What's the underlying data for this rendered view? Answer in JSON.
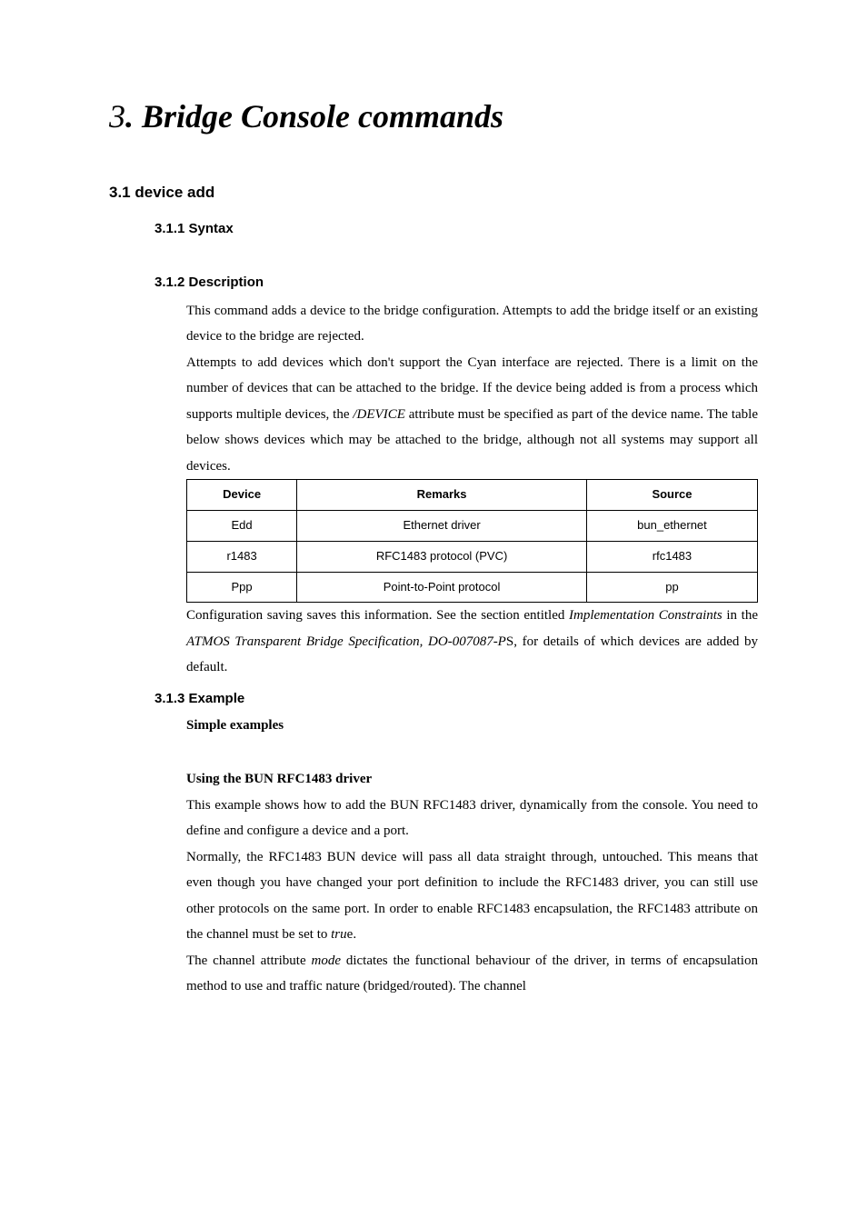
{
  "chapter": {
    "number": "3",
    "title": "Bridge Console commands"
  },
  "section_3_1": {
    "heading": "3.1 device add",
    "syntax_heading": "3.1.1 Syntax",
    "description_heading": "3.1.2 Description",
    "description_p1": "This command adds a device to the bridge configuration. Attempts to add the bridge itself or an existing device to the bridge are rejected.",
    "description_p2_a": "Attempts to add devices which don't support the Cyan interface are rejected. There is a limit on the number of devices that can be attached to the bridge. If the device being added is from a process which supports multiple devices, the ",
    "description_p2_b": "/DEVICE",
    "description_p2_c": " attribute must be specified as part of the device name. The table below shows devices which may be attached to the bridge, although not all systems may support all devices.",
    "table": {
      "headers": [
        "Device",
        "Remarks",
        "Source"
      ],
      "rows": [
        [
          "Edd",
          "Ethernet driver",
          "bun_ethernet"
        ],
        [
          "r1483",
          "RFC1483 protocol (PVC)",
          "rfc1483"
        ],
        [
          "Ppp",
          "Point-to-Point protocol",
          "pp"
        ]
      ]
    },
    "post_table_a": "Configuration saving saves this information. See the section entitled ",
    "post_table_b": "Implementation Constraints",
    "post_table_c": " in the ",
    "post_table_d": "ATMOS Transparent Bridge Specification, DO-007087-P",
    "post_table_e": "S, for details of which devices are added by default.",
    "example_heading": "3.1.3 Example",
    "simple_examples": "Simple examples",
    "bun_heading": "Using the BUN RFC1483 driver",
    "bun_p1": "This example shows how to add the BUN RFC1483 driver, dynamically from the console. You need to define and configure a device and a port.",
    "bun_p2_a": "Normally, the RFC1483 BUN device will pass all data straight through, untouched. This means that even though you have changed your port definition to include the RFC1483 driver, you can still use other protocols on the same port. In order to enable RFC1483 encapsulation, the RFC1483 attribute on the channel must be set to ",
    "bun_p2_b": "tru",
    "bun_p2_c": "e.",
    "bun_p3_a": "The channel attribute ",
    "bun_p3_b": "mode",
    "bun_p3_c": " dictates the functional behaviour of the driver, in terms of encapsulation method to use and traffic nature (bridged/routed). The channel"
  }
}
